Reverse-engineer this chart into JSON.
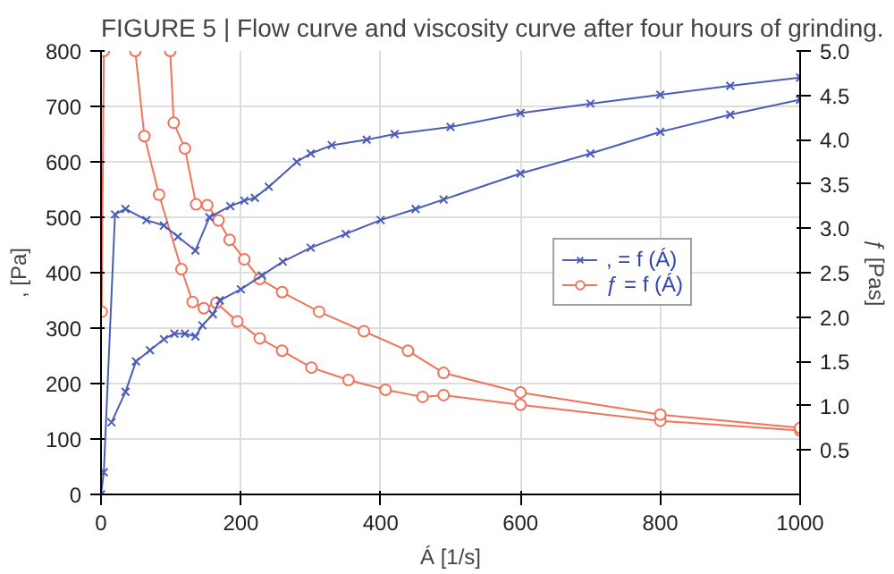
{
  "chart_data": {
    "type": "line",
    "title": "FIGURE 5 | Flow curve and viscosity curve after four hours of grinding.",
    "xlabel": "Á [1/s]",
    "ylabel": ", [Pa]",
    "y2label": "ƒ [Pas]",
    "xlim": [
      0,
      1000
    ],
    "xticks": [
      0,
      200,
      400,
      600,
      800,
      1000
    ],
    "ylim": [
      0,
      800
    ],
    "yticks": [
      0,
      100,
      200,
      300,
      400,
      500,
      600,
      700,
      800
    ],
    "y2lim": [
      0,
      5.0
    ],
    "y2ticks": [
      {
        "value": 0.5,
        "label": "0.5"
      },
      {
        "value": 1.0,
        "label": "1.0"
      },
      {
        "value": 1.5,
        "label": "1.5"
      },
      {
        "value": 2.0,
        "label": "2.0"
      },
      {
        "value": 2.5,
        "label": "2.5"
      },
      {
        "value": 3.0,
        "label": "3.0"
      },
      {
        "value": 3.5,
        "label": "3.5"
      },
      {
        "value": 4.0,
        "label": "4.0"
      },
      {
        "value": 4.5,
        "label": "4.5"
      },
      {
        "value": 5.0,
        "label": "5.0"
      }
    ],
    "grid": true,
    "legend": "center right",
    "series": [
      {
        "name": ", = f (Á)",
        "color": "#4a5cb8",
        "marker": "cross",
        "x": [
          15,
          35,
          50,
          70,
          90,
          105,
          120,
          135,
          145,
          160,
          170,
          200,
          230,
          260,
          300,
          350,
          400,
          450,
          490,
          600,
          700,
          800,
          900,
          1000,
          1000,
          900,
          800,
          700,
          600,
          500,
          420,
          380,
          330,
          300,
          280,
          240,
          220,
          205,
          185,
          155,
          135,
          110,
          90,
          65,
          35,
          20,
          4,
          0
        ],
        "values": [
          130,
          185,
          240,
          260,
          280,
          290,
          290,
          285,
          305,
          325,
          350,
          370,
          395,
          420,
          445,
          470,
          495,
          515,
          532,
          579,
          615,
          654,
          685,
          712,
          752,
          737,
          721,
          705,
          688,
          663,
          650,
          640,
          630,
          615,
          600,
          555,
          535,
          530,
          520,
          500,
          440,
          465,
          485,
          495,
          515,
          505,
          40,
          0
        ]
      },
      {
        "name": "ƒ = f (Á)",
        "color": "#f0735a",
        "marker": "circle",
        "axis": "y2",
        "x": [
          1,
          4,
          null,
          49,
          62,
          83,
          115,
          131,
          147,
          165,
          195,
          227,
          259,
          301,
          354,
          407,
          460,
          490,
          600,
          800,
          1000,
          1000,
          800,
          600,
          490,
          439,
          376,
          312,
          259,
          227,
          205,
          184,
          168,
          152,
          136,
          120,
          104,
          99
        ],
        "values": [
          2.06,
          5.0,
          null,
          5.0,
          4.04,
          3.38,
          2.54,
          2.17,
          2.1,
          2.16,
          1.95,
          1.76,
          1.62,
          1.43,
          1.29,
          1.18,
          1.1,
          1.12,
          1.01,
          0.83,
          0.72,
          0.75,
          0.9,
          1.15,
          1.37,
          1.62,
          1.84,
          2.06,
          2.28,
          2.43,
          2.65,
          2.87,
          3.09,
          3.26,
          3.27,
          3.9,
          4.19,
          5.0
        ]
      }
    ]
  }
}
